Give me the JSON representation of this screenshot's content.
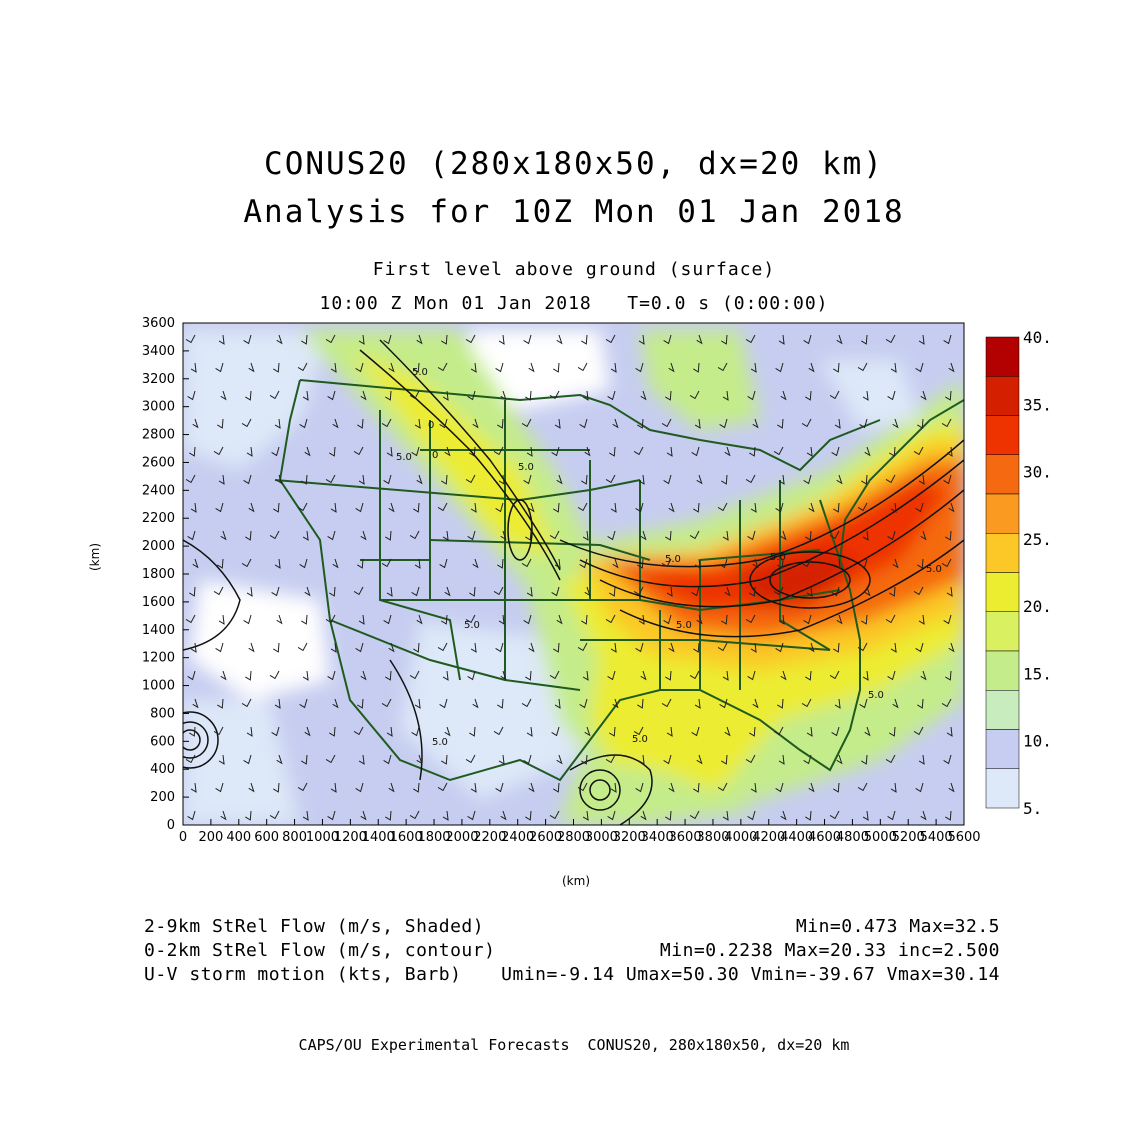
{
  "titles": {
    "line1": "CONUS20 (280x180x50, dx=20 km)",
    "line2": "Analysis for 10Z Mon 01 Jan 2018",
    "sub1": "First level above ground (surface)",
    "sub2": "10:00 Z Mon 01 Jan 2018   T=0.0 s (0:00:00)"
  },
  "axes": {
    "x_title": "(km)",
    "y_title": "(km)",
    "x_ticks": [
      "0",
      "200",
      "400",
      "600",
      "800",
      "1000",
      "1200",
      "1400",
      "1600",
      "1800",
      "2000",
      "2200",
      "2400",
      "2600",
      "2800",
      "3000",
      "3200",
      "3400",
      "3600",
      "3800",
      "4000",
      "4200",
      "4400",
      "4600",
      "4800",
      "5000",
      "5200",
      "5400",
      "5600"
    ],
    "y_ticks": [
      "0",
      "200",
      "400",
      "600",
      "800",
      "1000",
      "1200",
      "1400",
      "1600",
      "1800",
      "2000",
      "2200",
      "2400",
      "2600",
      "2800",
      "3000",
      "3200",
      "3400",
      "3600"
    ],
    "x_range_km": [
      0,
      5600
    ],
    "y_range_km": [
      0,
      3600
    ]
  },
  "colorbar": {
    "labels": [
      "40.",
      "35.",
      "30.",
      "25.",
      "20.",
      "15.",
      "10.",
      "5."
    ],
    "colors": [
      "#b30000",
      "#d42000",
      "#ee3300",
      "#f56a10",
      "#fa9a20",
      "#fbc828",
      "#ecec30",
      "#d9f060",
      "#c4ec8a",
      "#c8ecbe",
      "#c6cdf0",
      "#dde8f8"
    ],
    "min": 5,
    "max": 40
  },
  "contour_labels": [
    "5.0",
    "5.0",
    "5.0",
    "5.0",
    "5.0",
    "5.0",
    "5.0",
    "5.0",
    "5.0",
    "5.0",
    "5.0",
    "0",
    "0"
  ],
  "legend": {
    "row1_left": "2-9km StRel Flow (m/s, Shaded)",
    "row1_right": "Min=0.473 Max=32.5",
    "row2_left": "0-2km StRel Flow (m/s, contour)",
    "row2_right": "Min=0.2238 Max=20.33 inc=2.500",
    "row3_left": "U-V storm motion (kts, Barb)",
    "row3_right": "Umin=-9.14 Umax=50.30 Vmin=-39.67 Vmax=30.14"
  },
  "footer": "CAPS/OU Experimental Forecasts  CONUS20, 280x180x50, dx=20 km"
}
